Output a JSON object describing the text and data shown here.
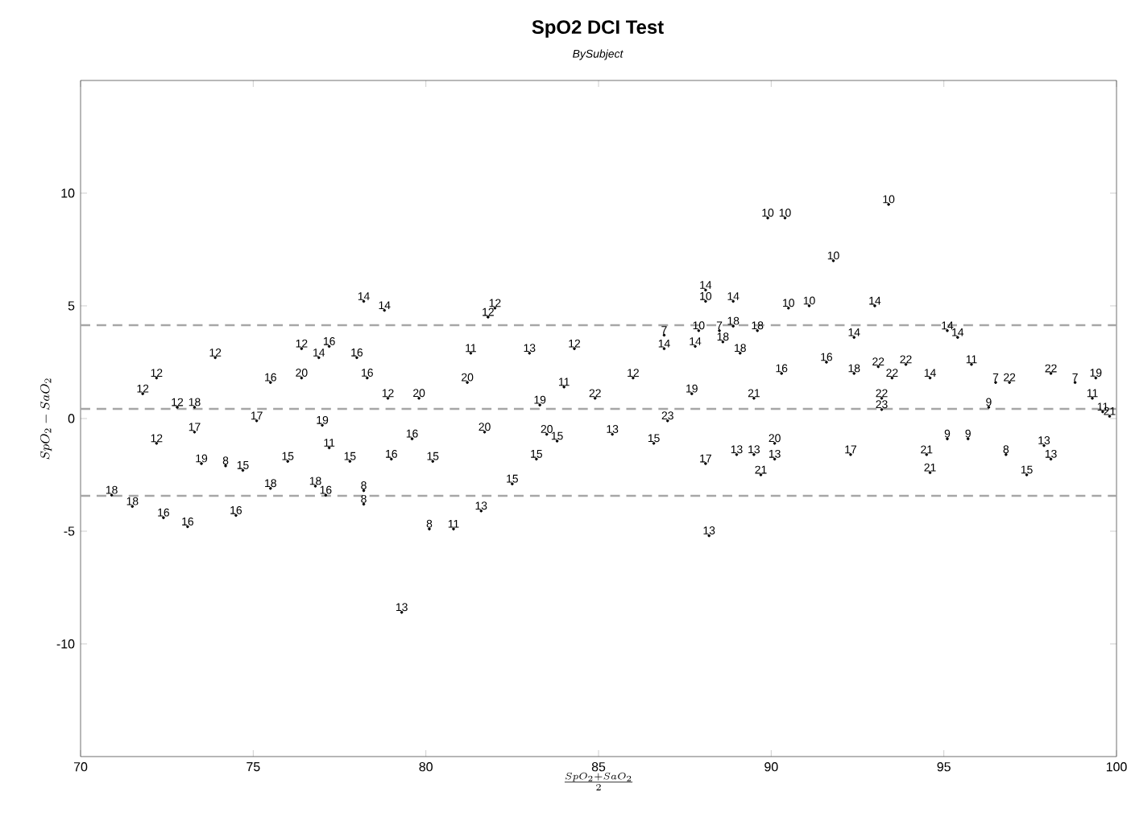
{
  "chart_data": {
    "type": "scatter",
    "title": "SpO2 DCI Test",
    "subtitle": "BySubject",
    "xlabel": "\\frac{SpO_2+SaO_2}{2}",
    "ylabel": "SpO_2-SaO_2",
    "xlim": [
      70,
      100
    ],
    "ylim": [
      -15,
      15
    ],
    "xticks": [
      70,
      75,
      80,
      85,
      90,
      95,
      100
    ],
    "yticks": [
      -10,
      -5,
      0,
      5,
      10
    ],
    "marker": "circle",
    "ref_lines": [
      {
        "axis": "y",
        "value": 0.43,
        "color": "#a6a6a6",
        "line_style": "dashed"
      },
      {
        "axis": "y",
        "value": 4.14,
        "color": "#a6a6a6",
        "line_style": "dashed"
      },
      {
        "axis": "y",
        "value": -3.43,
        "color": "#a6a6a6",
        "line_style": "dashed"
      }
    ],
    "series": [
      {
        "name": "7",
        "color": "#000000",
        "x": [
          86.9,
          88.5,
          96.5,
          98.8
        ],
        "values": [
          3.7,
          3.9,
          1.6,
          1.6
        ]
      },
      {
        "name": "8",
        "color": "#000000",
        "x": [
          80.1,
          78.2,
          78.2,
          96.8,
          74.2
        ],
        "values": [
          -4.9,
          -3.2,
          -3.8,
          -1.6,
          -2.1
        ]
      },
      {
        "name": "9",
        "color": "#000000",
        "x": [
          95.1,
          96.3,
          95.7
        ],
        "values": [
          -0.9,
          0.5,
          -0.9
        ]
      },
      {
        "name": "10",
        "color": "#000000",
        "x": [
          89.9,
          90.4,
          93.4,
          91.8,
          90.5,
          91.1,
          88.1,
          87.9
        ],
        "values": [
          8.9,
          8.9,
          9.5,
          7.0,
          4.9,
          5.0,
          5.2,
          3.9
        ]
      },
      {
        "name": "11",
        "color": "#000000",
        "x": [
          80.8,
          81.3,
          99.3,
          95.8,
          84.0,
          77.2,
          99.6
        ],
        "values": [
          -4.9,
          2.9,
          0.9,
          2.4,
          1.4,
          -1.3,
          0.3
        ]
      },
      {
        "name": "12",
        "color": "#000000",
        "x": [
          82.0,
          81.8,
          73.9,
          76.4,
          84.3,
          72.2,
          71.8,
          72.2,
          86.0,
          72.8,
          78.9
        ],
        "values": [
          4.9,
          4.5,
          2.7,
          3.1,
          3.1,
          1.8,
          1.1,
          -1.1,
          1.8,
          0.5,
          0.9
        ]
      },
      {
        "name": "13",
        "color": "#000000",
        "x": [
          79.3,
          81.6,
          88.2,
          83.0,
          89.5,
          90.1,
          89.0,
          97.9,
          98.1,
          85.4
        ],
        "values": [
          -8.6,
          -4.1,
          -5.2,
          2.9,
          -1.6,
          -1.8,
          -1.6,
          -1.2,
          -1.8,
          -0.7
        ]
      },
      {
        "name": "14",
        "color": "#000000",
        "x": [
          78.2,
          78.8,
          88.1,
          88.9,
          93.0,
          92.4,
          95.1,
          95.4,
          86.9,
          87.8,
          76.9,
          94.6
        ],
        "values": [
          5.2,
          4.8,
          5.7,
          5.2,
          5.0,
          3.6,
          3.9,
          3.6,
          3.1,
          3.2,
          2.7,
          1.8
        ]
      },
      {
        "name": "15",
        "color": "#000000",
        "x": [
          82.5,
          83.2,
          80.2,
          77.8,
          97.4,
          76.0,
          86.6,
          83.8,
          74.7
        ],
        "values": [
          -2.9,
          -1.8,
          -1.9,
          -1.9,
          -2.5,
          -1.9,
          -1.1,
          -1.0,
          -2.3
        ]
      },
      {
        "name": "16",
        "color": "#000000",
        "x": [
          72.4,
          73.1,
          74.5,
          77.1,
          77.2,
          78.0,
          78.3,
          75.5,
          79.6,
          90.3,
          91.6,
          79.0
        ],
        "values": [
          -4.4,
          -4.8,
          -4.3,
          -3.4,
          3.2,
          2.7,
          1.8,
          1.6,
          -0.9,
          2.0,
          2.5,
          -1.8
        ]
      },
      {
        "name": "17",
        "color": "#000000",
        "x": [
          88.1,
          92.3,
          73.3,
          75.1
        ],
        "values": [
          -2.0,
          -1.6,
          -0.6,
          -0.1
        ]
      },
      {
        "name": "18",
        "color": "#000000",
        "x": [
          70.9,
          71.5,
          75.5,
          76.8,
          88.9,
          89.6,
          88.6,
          89.1,
          73.3,
          92.4
        ],
        "values": [
          -3.4,
          -3.9,
          -3.1,
          -3.0,
          4.1,
          3.9,
          3.4,
          2.9,
          0.5,
          2.0
        ]
      },
      {
        "name": "19",
        "color": "#000000",
        "x": [
          83.3,
          87.7,
          73.5,
          77.0,
          99.4
        ],
        "values": [
          0.6,
          1.1,
          -2.0,
          -0.3,
          1.8
        ]
      },
      {
        "name": "20",
        "color": "#000000",
        "x": [
          76.4,
          90.1,
          81.2,
          79.8,
          83.5,
          81.7
        ],
        "values": [
          1.8,
          -1.1,
          1.6,
          0.9,
          -0.7,
          -0.6
        ]
      },
      {
        "name": "21",
        "color": "#000000",
        "x": [
          89.5,
          89.7,
          94.5,
          94.6,
          99.8
        ],
        "values": [
          0.9,
          -2.5,
          -1.6,
          -2.4,
          0.1
        ]
      },
      {
        "name": "22",
        "color": "#000000",
        "x": [
          96.9,
          93.5,
          93.1,
          93.9,
          98.1,
          84.9,
          93.2
        ],
        "values": [
          1.6,
          1.8,
          2.3,
          2.4,
          2.0,
          0.9,
          0.9
        ]
      },
      {
        "name": "23",
        "color": "#000000",
        "x": [
          93.2,
          87.0
        ],
        "values": [
          0.4,
          -0.1
        ]
      }
    ]
  }
}
